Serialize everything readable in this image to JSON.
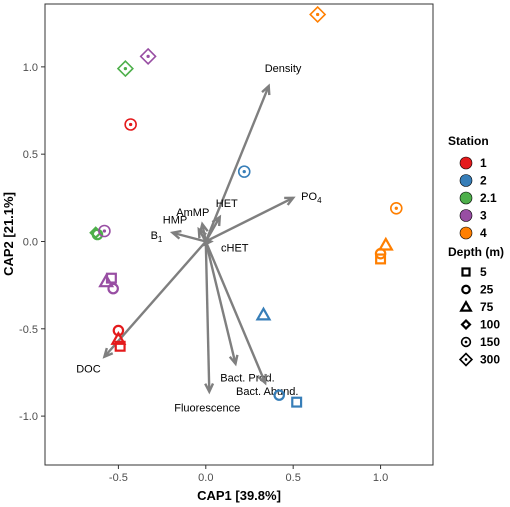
{
  "chart_data": {
    "type": "scatter",
    "xlabel": "CAP1 [39.8%]",
    "ylabel": "CAP2 [21.1%]",
    "xlim": [
      -0.92,
      1.3
    ],
    "ylim": [
      -1.28,
      1.36
    ],
    "xticks": [
      -0.5,
      0.0,
      0.5,
      1.0
    ],
    "yticks": [
      -1.0,
      -0.5,
      0.0,
      0.5,
      1.0
    ],
    "xtick_labels": [
      "-0.5",
      "0.0",
      "0.5",
      "1.0"
    ],
    "ytick_labels": [
      "-1.0",
      "-0.5",
      "0.0",
      "0.5",
      "1.0"
    ],
    "grid": false,
    "legend_position": "right",
    "vectors": [
      {
        "label": "Density",
        "x": 0.36,
        "y": 0.89
      },
      {
        "label": "PO4",
        "x": 0.5,
        "y": 0.25
      },
      {
        "label": "AmMP",
        "x": -0.02,
        "y": 0.1
      },
      {
        "label": "HET",
        "x": 0.08,
        "y": 0.14
      },
      {
        "label": "HMP",
        "x": -0.04,
        "y": 0.07
      },
      {
        "label": "B1",
        "x": -0.19,
        "y": 0.05
      },
      {
        "label": "cHET",
        "x": 0.03,
        "y": 0.0
      },
      {
        "label": "DOC",
        "x": -0.58,
        "y": -0.66
      },
      {
        "label": "Fluorescence",
        "x": 0.02,
        "y": -0.86
      },
      {
        "label": "Bact. Prod.",
        "x": 0.17,
        "y": -0.7
      },
      {
        "label": "Bact. Abund.",
        "x": 0.34,
        "y": -0.81
      }
    ],
    "points": [
      {
        "station": "1",
        "depth": "150",
        "x": -0.43,
        "y": 0.67
      },
      {
        "station": "1",
        "depth": "25",
        "x": -0.5,
        "y": -0.51
      },
      {
        "station": "1",
        "depth": "75",
        "x": -0.5,
        "y": -0.56
      },
      {
        "station": "1",
        "depth": "5",
        "x": -0.49,
        "y": -0.6
      },
      {
        "station": "2",
        "depth": "150",
        "x": 0.22,
        "y": 0.4
      },
      {
        "station": "2",
        "depth": "75",
        "x": 0.33,
        "y": -0.42
      },
      {
        "station": "2",
        "depth": "25",
        "x": 0.42,
        "y": -0.88
      },
      {
        "station": "2",
        "depth": "5",
        "x": 0.52,
        "y": -0.92
      },
      {
        "station": "2.1",
        "depth": "300",
        "x": -0.46,
        "y": 0.99
      },
      {
        "station": "2.1",
        "depth": "100",
        "x": -0.63,
        "y": 0.05
      },
      {
        "station": "2.1",
        "depth": "25",
        "x": -0.62,
        "y": 0.04
      },
      {
        "station": "3",
        "depth": "300",
        "x": -0.33,
        "y": 1.06
      },
      {
        "station": "3",
        "depth": "150",
        "x": -0.58,
        "y": 0.06
      },
      {
        "station": "3",
        "depth": "5",
        "x": -0.54,
        "y": -0.21
      },
      {
        "station": "3",
        "depth": "75",
        "x": -0.57,
        "y": -0.23
      },
      {
        "station": "3",
        "depth": "25",
        "x": -0.53,
        "y": -0.27
      },
      {
        "station": "4",
        "depth": "300",
        "x": 0.64,
        "y": 1.3
      },
      {
        "station": "4",
        "depth": "150",
        "x": 1.09,
        "y": 0.19
      },
      {
        "station": "4",
        "depth": "75",
        "x": 1.03,
        "y": -0.02
      },
      {
        "station": "4",
        "depth": "25",
        "x": 1.0,
        "y": -0.07
      },
      {
        "station": "4",
        "depth": "5",
        "x": 1.0,
        "y": -0.1
      }
    ]
  },
  "legend": {
    "station_title": "Station",
    "stations": [
      {
        "label": "1",
        "color": "#e41a1c"
      },
      {
        "label": "2",
        "color": "#377eb8"
      },
      {
        "label": "2.1",
        "color": "#4daf4a"
      },
      {
        "label": "3",
        "color": "#984ea3"
      },
      {
        "label": "4",
        "color": "#ff7f00"
      }
    ],
    "depth_title": "Depth (m)",
    "depths": [
      {
        "label": "5",
        "shape": "square"
      },
      {
        "label": "25",
        "shape": "circle"
      },
      {
        "label": "75",
        "shape": "triangle"
      },
      {
        "label": "100",
        "shape": "diamond-small"
      },
      {
        "label": "150",
        "shape": "circle-dot"
      },
      {
        "label": "300",
        "shape": "diamond-dot"
      }
    ]
  }
}
